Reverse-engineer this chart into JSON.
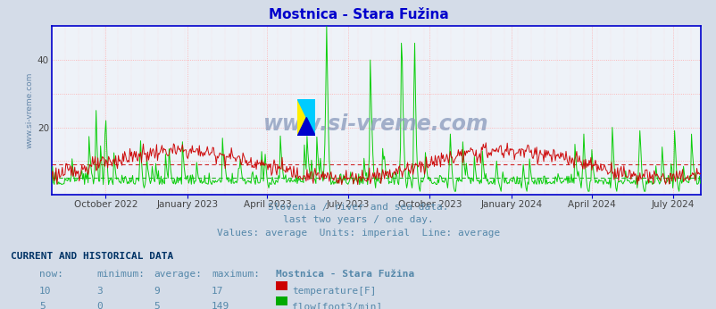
{
  "title": "Mostnica - Stara Fužina",
  "subtitle_lines": [
    "Slovenia / river and sea data.",
    "last two years / one day.",
    "Values: average  Units: imperial  Line: average"
  ],
  "table_header": "CURRENT AND HISTORICAL DATA",
  "table_cols": [
    "now:",
    "minimum:",
    "average:",
    "maximum:",
    "Mostnica - Stara Fužina"
  ],
  "table_rows": [
    {
      "now": 10,
      "min": 3,
      "avg": 9,
      "max": 17,
      "label": "temperature[F]",
      "color": "#cc0000"
    },
    {
      "now": 5,
      "min": 0,
      "avg": 5,
      "max": 149,
      "label": "flow[foot3/min]",
      "color": "#00aa00"
    }
  ],
  "background_color": "#d4dce8",
  "plot_bg_color": "#eef2f8",
  "title_color": "#0000cc",
  "subtitle_color": "#5588aa",
  "table_header_color": "#003366",
  "table_col_header_color": "#5588aa",
  "table_data_color": "#5588aa",
  "ylabel_color": "#6688aa",
  "temp_color": "#cc0000",
  "flow_color": "#00cc00",
  "temp_avg": 9,
  "flow_avg": 5,
  "ylim": [
    0,
    50
  ],
  "yticks": [
    20,
    40
  ],
  "watermark_text": "www.si-vreme.com",
  "watermark_color": "#8899bb",
  "x_tick_labels": [
    "October 2022",
    "January 2023",
    "April 2023",
    "July 2023",
    "October 2023",
    "January 2024",
    "April 2024",
    "July 2024"
  ],
  "logo_yellow": "#ffee00",
  "logo_cyan": "#00ccff",
  "logo_blue": "#0000cc"
}
